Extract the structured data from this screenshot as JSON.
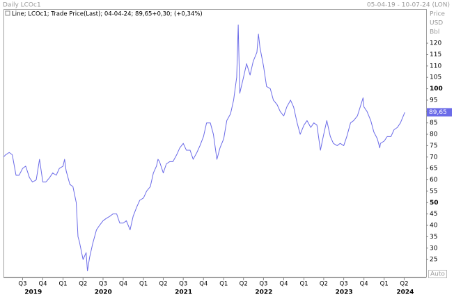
{
  "chart_data": {
    "type": "line",
    "title": "Daily LCOc1",
    "date_range": "05-04-19 - 10-07-24 (LON)",
    "y_units": [
      "Price",
      "USD",
      "Bbl"
    ],
    "scale_mode": "Auto",
    "xlim": [
      "2019-04-05",
      "2024-07-10"
    ],
    "ylim": [
      17.4,
      135
    ],
    "yticks": [
      25,
      30,
      35,
      40,
      45,
      50,
      55,
      60,
      65,
      70,
      75,
      80,
      85,
      90,
      95,
      100,
      105,
      110,
      115,
      120
    ],
    "xticks": [
      {
        "value": "2019-07-01",
        "label": "Q3"
      },
      {
        "value": "2019-10-01",
        "label": "Q4"
      },
      {
        "value": "2020-01-01",
        "label": "Q1"
      },
      {
        "value": "2020-04-01",
        "label": "Q2"
      },
      {
        "value": "2020-07-01",
        "label": "Q3"
      },
      {
        "value": "2020-10-01",
        "label": "Q4"
      },
      {
        "value": "2021-01-01",
        "label": "Q1"
      },
      {
        "value": "2021-04-01",
        "label": "Q2"
      },
      {
        "value": "2021-07-01",
        "label": "Q3"
      },
      {
        "value": "2021-10-01",
        "label": "Q4"
      },
      {
        "value": "2022-01-01",
        "label": "Q1"
      },
      {
        "value": "2022-04-01",
        "label": "Q2"
      },
      {
        "value": "2022-07-01",
        "label": "Q3"
      },
      {
        "value": "2022-10-01",
        "label": "Q4"
      },
      {
        "value": "2023-01-01",
        "label": "Q1"
      },
      {
        "value": "2023-04-01",
        "label": "Q2"
      },
      {
        "value": "2023-07-01",
        "label": "Q3"
      },
      {
        "value": "2023-10-01",
        "label": "Q4"
      },
      {
        "value": "2024-01-01",
        "label": "Q1"
      },
      {
        "value": "2024-04-01",
        "label": "Q2"
      }
    ],
    "years": [
      "2019",
      "2020",
      "2021",
      "2022",
      "2023",
      "2024"
    ],
    "last": {
      "value": 89.65,
      "label": "89,65"
    },
    "series": [
      {
        "name": "Line; LCOc1; Trade Price(Last); 04-04-24; 89,65+0,30; (+0,34%)",
        "color": "#6b6be8",
        "x": [
          "2019-04-05",
          "2019-04-15",
          "2019-05-01",
          "2019-05-15",
          "2019-06-01",
          "2019-06-15",
          "2019-07-01",
          "2019-07-15",
          "2019-08-01",
          "2019-08-15",
          "2019-09-01",
          "2019-09-16",
          "2019-10-01",
          "2019-10-15",
          "2019-11-01",
          "2019-11-15",
          "2019-12-01",
          "2019-12-15",
          "2020-01-01",
          "2020-01-08",
          "2020-01-15",
          "2020-02-01",
          "2020-02-15",
          "2020-03-01",
          "2020-03-09",
          "2020-03-15",
          "2020-04-01",
          "2020-04-15",
          "2020-04-21",
          "2020-05-01",
          "2020-05-15",
          "2020-06-01",
          "2020-06-15",
          "2020-07-01",
          "2020-07-15",
          "2020-08-01",
          "2020-08-15",
          "2020-09-01",
          "2020-09-15",
          "2020-10-01",
          "2020-10-15",
          "2020-11-01",
          "2020-11-15",
          "2020-12-01",
          "2020-12-15",
          "2021-01-01",
          "2021-01-15",
          "2021-02-01",
          "2021-02-15",
          "2021-03-01",
          "2021-03-08",
          "2021-03-15",
          "2021-04-01",
          "2021-04-15",
          "2021-05-01",
          "2021-05-15",
          "2021-06-01",
          "2021-06-15",
          "2021-07-01",
          "2021-07-15",
          "2021-08-01",
          "2021-08-15",
          "2021-09-01",
          "2021-09-15",
          "2021-10-01",
          "2021-10-15",
          "2021-11-01",
          "2021-11-15",
          "2021-12-01",
          "2021-12-15",
          "2022-01-01",
          "2022-01-15",
          "2022-02-01",
          "2022-02-15",
          "2022-03-01",
          "2022-03-08",
          "2022-03-15",
          "2022-04-01",
          "2022-04-15",
          "2022-05-01",
          "2022-05-15",
          "2022-06-01",
          "2022-06-08",
          "2022-06-15",
          "2022-07-01",
          "2022-07-15",
          "2022-08-01",
          "2022-08-15",
          "2022-09-01",
          "2022-09-15",
          "2022-10-01",
          "2022-10-15",
          "2022-11-01",
          "2022-11-15",
          "2022-12-01",
          "2022-12-15",
          "2023-01-01",
          "2023-01-15",
          "2023-02-01",
          "2023-02-15",
          "2023-03-01",
          "2023-03-17",
          "2023-04-01",
          "2023-04-15",
          "2023-05-01",
          "2023-05-15",
          "2023-06-01",
          "2023-06-15",
          "2023-07-01",
          "2023-07-15",
          "2023-08-01",
          "2023-08-15",
          "2023-09-01",
          "2023-09-27",
          "2023-10-01",
          "2023-10-15",
          "2023-11-01",
          "2023-11-15",
          "2023-12-01",
          "2023-12-12",
          "2023-12-15",
          "2024-01-01",
          "2024-01-15",
          "2024-02-01",
          "2024-02-15",
          "2024-03-01",
          "2024-03-15",
          "2024-04-04"
        ],
        "values": [
          70,
          71,
          72,
          71,
          62,
          62,
          65,
          66,
          61,
          59,
          60,
          69,
          59,
          59,
          61,
          63,
          62,
          65,
          66,
          69,
          64,
          58,
          57,
          50,
          35,
          33,
          25,
          28,
          20,
          26,
          32,
          38,
          40,
          42,
          43,
          44,
          45,
          45,
          41,
          41,
          42,
          38,
          44,
          48,
          51,
          52,
          55,
          57,
          63,
          66,
          69,
          68,
          63,
          67,
          68,
          68,
          71,
          74,
          76,
          73,
          73,
          69,
          72,
          75,
          79,
          85,
          85,
          80,
          69,
          74,
          78,
          86,
          89,
          95,
          105,
          128,
          98,
          105,
          111,
          106,
          112,
          116,
          124,
          118,
          110,
          101,
          100,
          95,
          93,
          90,
          88,
          92,
          95,
          92,
          85,
          80,
          84,
          86,
          83,
          85,
          84,
          73,
          80,
          86,
          79,
          76,
          75,
          76,
          75,
          79,
          85,
          86,
          88,
          96,
          92,
          90,
          86,
          81,
          78,
          74,
          76,
          77,
          79,
          79,
          82,
          83,
          85,
          89.65
        ]
      }
    ]
  }
}
